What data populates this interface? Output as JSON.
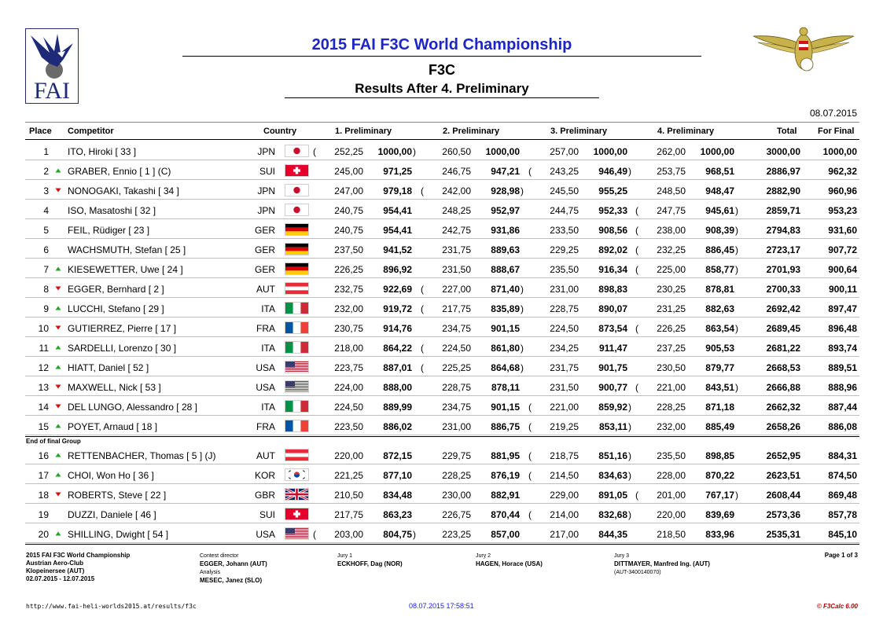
{
  "header": {
    "title": "2015 FAI F3C World Championship",
    "class_name": "F3C",
    "subtitle": "Results After 4. Preliminary",
    "date": "08.07.2015",
    "fai_logo_text": "FAI"
  },
  "columns": {
    "place": "Place",
    "competitor": "Competitor",
    "country": "Country",
    "p1": "1. Preliminary",
    "p2": "2. Preliminary",
    "p3": "3. Preliminary",
    "p4": "4. Preliminary",
    "total": "Total",
    "final": "For Final"
  },
  "rows": [
    {
      "place": "1",
      "trend": "",
      "name": "ITO, Hiroki  [ 33 ]",
      "country": "JPN",
      "flag": "jpn",
      "scores": [
        [
          "252,25",
          "1000,00"
        ],
        [
          "260,50",
          "1000,00"
        ],
        [
          "257,00",
          "1000,00"
        ],
        [
          "262,00",
          "1000,00"
        ]
      ],
      "dropped": 0,
      "total": "3000,00",
      "final": "1000,00"
    },
    {
      "place": "2",
      "trend": "up",
      "name": "GRABER, Ennio  [ 1 ] (C)",
      "country": "SUI",
      "flag": "sui",
      "scores": [
        [
          "245,00",
          "971,25"
        ],
        [
          "246,75",
          "947,21"
        ],
        [
          "243,25",
          "946,49"
        ],
        [
          "253,75",
          "968,51"
        ]
      ],
      "dropped": 2,
      "total": "2886,97",
      "final": "962,32"
    },
    {
      "place": "3",
      "trend": "down",
      "name": "NONOGAKI, Takashi  [ 34 ]",
      "country": "JPN",
      "flag": "jpn",
      "scores": [
        [
          "247,00",
          "979,18"
        ],
        [
          "242,00",
          "928,98"
        ],
        [
          "245,50",
          "955,25"
        ],
        [
          "248,50",
          "948,47"
        ]
      ],
      "dropped": 1,
      "total": "2882,90",
      "final": "960,96"
    },
    {
      "place": "4",
      "trend": "",
      "name": "ISO, Masatoshi  [ 32 ]",
      "country": "JPN",
      "flag": "jpn",
      "scores": [
        [
          "240,75",
          "954,41"
        ],
        [
          "248,25",
          "952,97"
        ],
        [
          "244,75",
          "952,33"
        ],
        [
          "247,75",
          "945,61"
        ]
      ],
      "dropped": 3,
      "total": "2859,71",
      "final": "953,23"
    },
    {
      "place": "5",
      "trend": "",
      "name": "FEIL, Rüdiger  [ 23 ]",
      "country": "GER",
      "flag": "ger",
      "scores": [
        [
          "240,75",
          "954,41"
        ],
        [
          "242,75",
          "931,86"
        ],
        [
          "233,50",
          "908,56"
        ],
        [
          "238,00",
          "908,39"
        ]
      ],
      "dropped": 3,
      "total": "2794,83",
      "final": "931,60"
    },
    {
      "place": "6",
      "trend": "",
      "name": "WACHSMUTH, Stefan  [ 25 ]",
      "country": "GER",
      "flag": "ger",
      "scores": [
        [
          "237,50",
          "941,52"
        ],
        [
          "231,75",
          "889,63"
        ],
        [
          "229,25",
          "892,02"
        ],
        [
          "232,25",
          "886,45"
        ]
      ],
      "dropped": 3,
      "total": "2723,17",
      "final": "907,72"
    },
    {
      "place": "7",
      "trend": "up",
      "name": "KIESEWETTER, Uwe  [ 24 ]",
      "country": "GER",
      "flag": "ger",
      "scores": [
        [
          "226,25",
          "896,92"
        ],
        [
          "231,50",
          "888,67"
        ],
        [
          "235,50",
          "916,34"
        ],
        [
          "225,00",
          "858,77"
        ]
      ],
      "dropped": 3,
      "total": "2701,93",
      "final": "900,64"
    },
    {
      "place": "8",
      "trend": "down",
      "name": "EGGER, Bernhard  [ 2 ]",
      "country": "AUT",
      "flag": "aut",
      "scores": [
        [
          "232,75",
          "922,69"
        ],
        [
          "227,00",
          "871,40"
        ],
        [
          "231,00",
          "898,83"
        ],
        [
          "230,25",
          "878,81"
        ]
      ],
      "dropped": 1,
      "total": "2700,33",
      "final": "900,11"
    },
    {
      "place": "9",
      "trend": "up",
      "name": "LUCCHI, Stefano  [ 29 ]",
      "country": "ITA",
      "flag": "ita",
      "scores": [
        [
          "232,00",
          "919,72"
        ],
        [
          "217,75",
          "835,89"
        ],
        [
          "228,75",
          "890,07"
        ],
        [
          "231,25",
          "882,63"
        ]
      ],
      "dropped": 1,
      "total": "2692,42",
      "final": "897,47"
    },
    {
      "place": "10",
      "trend": "down",
      "name": "GUTIERREZ, Pierre  [ 17 ]",
      "country": "FRA",
      "flag": "fra",
      "scores": [
        [
          "230,75",
          "914,76"
        ],
        [
          "234,75",
          "901,15"
        ],
        [
          "224,50",
          "873,54"
        ],
        [
          "226,25",
          "863,54"
        ]
      ],
      "dropped": 3,
      "total": "2689,45",
      "final": "896,48"
    },
    {
      "place": "11",
      "trend": "up",
      "name": "SARDELLI, Lorenzo  [ 30 ]",
      "country": "ITA",
      "flag": "ita",
      "scores": [
        [
          "218,00",
          "864,22"
        ],
        [
          "224,50",
          "861,80"
        ],
        [
          "234,25",
          "911,47"
        ],
        [
          "237,25",
          "905,53"
        ]
      ],
      "dropped": 1,
      "total": "2681,22",
      "final": "893,74"
    },
    {
      "place": "12",
      "trend": "up",
      "name": "HIATT, Daniel  [ 52 ]",
      "country": "USA",
      "flag": "usa",
      "scores": [
        [
          "223,75",
          "887,01"
        ],
        [
          "225,25",
          "864,68"
        ],
        [
          "231,75",
          "901,75"
        ],
        [
          "230,50",
          "879,77"
        ]
      ],
      "dropped": 1,
      "total": "2668,53",
      "final": "889,51"
    },
    {
      "place": "13",
      "trend": "down",
      "name": "MAXWELL, Nick  [ 53 ]",
      "country": "USA",
      "flag": "usa",
      "scores": [
        [
          "224,00",
          "888,00"
        ],
        [
          "228,75",
          "878,11"
        ],
        [
          "231,50",
          "900,77"
        ],
        [
          "221,00",
          "843,51"
        ]
      ],
      "dropped": 3,
      "total": "2666,88",
      "final": "888,96"
    },
    {
      "place": "14",
      "trend": "down",
      "name": "DEL LUNGO, Alessandro  [ 28 ]",
      "country": "ITA",
      "flag": "ita",
      "scores": [
        [
          "224,50",
          "889,99"
        ],
        [
          "234,75",
          "901,15"
        ],
        [
          "221,00",
          "859,92"
        ],
        [
          "228,25",
          "871,18"
        ]
      ],
      "dropped": 2,
      "total": "2662,32",
      "final": "887,44"
    },
    {
      "place": "15",
      "trend": "up",
      "name": "POYET, Arnaud  [ 18 ]",
      "country": "FRA",
      "flag": "fra",
      "scores": [
        [
          "223,50",
          "886,02"
        ],
        [
          "231,00",
          "886,75"
        ],
        [
          "219,25",
          "853,11"
        ],
        [
          "232,00",
          "885,49"
        ]
      ],
      "dropped": 2,
      "total": "2658,26",
      "final": "886,08"
    },
    {
      "place": "16",
      "trend": "up",
      "name": "RETTENBACHER, Thomas  [ 5 ] (J)",
      "country": "AUT",
      "flag": "aut",
      "scores": [
        [
          "220,00",
          "872,15"
        ],
        [
          "229,75",
          "881,95"
        ],
        [
          "218,75",
          "851,16"
        ],
        [
          "235,50",
          "898,85"
        ]
      ],
      "dropped": 2,
      "total": "2652,95",
      "final": "884,31"
    },
    {
      "place": "17",
      "trend": "up",
      "name": "CHOI, Won Ho  [ 36 ]",
      "country": "KOR",
      "flag": "kor",
      "scores": [
        [
          "221,25",
          "877,10"
        ],
        [
          "228,25",
          "876,19"
        ],
        [
          "214,50",
          "834,63"
        ],
        [
          "228,00",
          "870,22"
        ]
      ],
      "dropped": 2,
      "total": "2623,51",
      "final": "874,50"
    },
    {
      "place": "18",
      "trend": "down",
      "name": "ROBERTS, Steve  [ 22 ]",
      "country": "GBR",
      "flag": "gbr",
      "scores": [
        [
          "210,50",
          "834,48"
        ],
        [
          "230,00",
          "882,91"
        ],
        [
          "229,00",
          "891,05"
        ],
        [
          "201,00",
          "767,17"
        ]
      ],
      "dropped": 3,
      "total": "2608,44",
      "final": "869,48"
    },
    {
      "place": "19",
      "trend": "",
      "name": "DUZZI, Daniele  [ 46 ]",
      "country": "SUI",
      "flag": "sui",
      "scores": [
        [
          "217,75",
          "863,23"
        ],
        [
          "226,75",
          "870,44"
        ],
        [
          "214,00",
          "832,68"
        ],
        [
          "220,00",
          "839,69"
        ]
      ],
      "dropped": 2,
      "total": "2573,36",
      "final": "857,78"
    },
    {
      "place": "20",
      "trend": "up",
      "name": "SHILLING, Dwight  [ 54 ]",
      "country": "USA",
      "flag": "usa",
      "scores": [
        [
          "203,00",
          "804,75"
        ],
        [
          "223,25",
          "857,00"
        ],
        [
          "217,00",
          "844,35"
        ],
        [
          "218,50",
          "833,96"
        ]
      ],
      "dropped": 0,
      "total": "2535,31",
      "final": "845,10"
    }
  ],
  "final_group_label": "End of final Group",
  "colors": {
    "title": "#1d24c8",
    "trend_up": "#2aa02a",
    "trend_down": "#d01010",
    "copyright": "#b00000"
  },
  "footer": {
    "event": "2015 FAI F3C World Championship",
    "club": "Austrian Aero-Club",
    "venue": "Klopeinersee (AUT)",
    "dates": "02.07.2015 - 12.07.2015",
    "contest_director_label": "Contest director",
    "contest_director": "EGGER, Johann (AUT)",
    "analysis_label": "Analysis",
    "analysis": "MESEC, Janez (SLO)",
    "jury1_label": "Jury 1",
    "jury1": "ECKHOFF, Dag (NOR)",
    "jury2_label": "Jury 2",
    "jury2": "HAGEN, Horace (USA)",
    "jury3_label": "Jury 3",
    "jury3": "DITTMAYER, Manfred Ing. (AUT)",
    "jury3_id": "(AUT-3400140070)",
    "page": "Page 1 of 3",
    "url": "http://www.fai-heli-worlds2015.at/results/f3c",
    "printed": "08.07.2015 17:58:51",
    "software": "© F3Calc 6.00"
  }
}
